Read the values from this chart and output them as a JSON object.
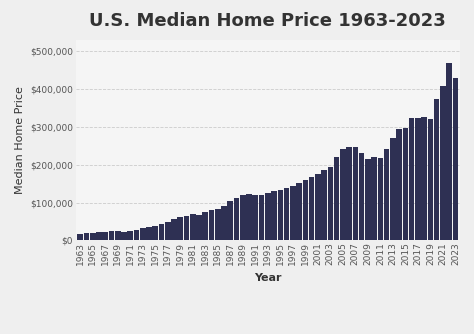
{
  "title": "U.S. Median Home Price 1963-2023",
  "xlabel": "Year",
  "ylabel": "Median Home Price",
  "bar_color": "#2e3053",
  "background_color": "#efefef",
  "plot_bg_color": "#f5f5f5",
  "years": [
    1963,
    1964,
    1965,
    1966,
    1967,
    1968,
    1969,
    1970,
    1971,
    1972,
    1973,
    1974,
    1975,
    1976,
    1977,
    1978,
    1979,
    1980,
    1981,
    1982,
    1983,
    1984,
    1985,
    1986,
    1987,
    1988,
    1989,
    1990,
    1991,
    1992,
    1993,
    1994,
    1995,
    1996,
    1997,
    1998,
    1999,
    2000,
    2001,
    2002,
    2003,
    2004,
    2005,
    2006,
    2007,
    2008,
    2009,
    2010,
    2011,
    2012,
    2013,
    2014,
    2015,
    2016,
    2017,
    2018,
    2019,
    2020,
    2021,
    2022,
    2023
  ],
  "prices": [
    18000,
    18900,
    20000,
    21400,
    22700,
    24700,
    25600,
    23000,
    25200,
    27600,
    32500,
    35900,
    39300,
    44200,
    48800,
    55700,
    62900,
    64600,
    68900,
    67800,
    75300,
    79900,
    84300,
    92000,
    104500,
    112500,
    120000,
    122900,
    120000,
    121500,
    126500,
    130000,
    133900,
    140000,
    145400,
    152500,
    161000,
    169000,
    175200,
    187700,
    195000,
    221000,
    240900,
    246500,
    247900,
    232100,
    216700,
    221800,
    218700,
    240700,
    270200,
    294700,
    296400,
    324500,
    323100,
    325300,
    321400,
    374900,
    408800,
    468400,
    431000
  ],
  "ylim": [
    0,
    530000
  ],
  "yticks": [
    0,
    100000,
    200000,
    300000,
    400000,
    500000
  ],
  "ytick_labels": [
    "$0",
    "$100,000",
    "$200,000",
    "$300,000",
    "$400,000",
    "$500,000"
  ],
  "title_fontsize": 13,
  "axis_label_fontsize": 8,
  "tick_fontsize": 6.5
}
